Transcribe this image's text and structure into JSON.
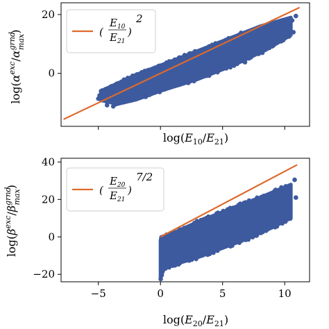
{
  "chart_data": [
    {
      "type": "scatter",
      "xlim": [
        -8,
        12
      ],
      "ylim": [
        -18,
        24
      ],
      "xticks": [
        -5,
        0,
        5,
        10
      ],
      "yticks": [
        -20,
        0,
        20
      ],
      "ytick_labels": [
        "0",
        "20"
      ],
      "xlabel": "log(E10/E21)",
      "ylabel": "log(α^exc/α^grnd_max)",
      "legend": {
        "text": "(E10/E21)^2",
        "position": "top-left"
      },
      "reference_line": {
        "x": [
          -7.8,
          11.2
        ],
        "y": [
          -15.6,
          22.4
        ],
        "color": "#dd6a2c"
      },
      "point_color": "#3e5a9e",
      "point_cloud": {
        "upper": [
          [
            -4.8,
            -6
          ],
          [
            -2,
            -0.5
          ],
          [
            2,
            6
          ],
          [
            5,
            11
          ],
          [
            8,
            16
          ],
          [
            10.5,
            19
          ]
        ],
        "lower": [
          [
            -4.8,
            -9
          ],
          [
            -3.5,
            -10.5
          ],
          [
            -2,
            -9
          ],
          [
            0,
            -6
          ],
          [
            3,
            -2
          ],
          [
            6,
            3
          ],
          [
            8.5,
            8
          ],
          [
            10.5,
            13
          ]
        ],
        "outliers": [
          [
            10.6,
            18
          ],
          [
            10.9,
            19.5
          ],
          [
            9.9,
            15.5
          ],
          [
            10.2,
            16.6
          ],
          [
            9.6,
            17
          ],
          [
            -4.9,
            -7.5
          ],
          [
            -3.8,
            -11.2
          ],
          [
            -4.3,
            -10.8
          ],
          [
            6.8,
            3.8
          ],
          [
            8.2,
            7.0
          ],
          [
            9.0,
            9.2
          ],
          [
            10.7,
            14.0
          ],
          [
            -5.0,
            -8.6
          ]
        ]
      }
    },
    {
      "type": "scatter",
      "xlim": [
        -8,
        12
      ],
      "ylim": [
        -24,
        42
      ],
      "xticks": [
        -5,
        0,
        5,
        10
      ],
      "xtick_labels": [
        "−5",
        "0",
        "5",
        "10"
      ],
      "yticks": [
        -20,
        0,
        20,
        40
      ],
      "ytick_labels": [
        "−20",
        "0",
        "20",
        "40"
      ],
      "xlabel": "log(E20/E21)",
      "ylabel": "log(β^exc/β^grnd_max)",
      "legend": {
        "text": "(E20/E21)^7/2",
        "position": "top-left"
      },
      "reference_line": {
        "x": [
          0,
          11
        ],
        "y": [
          0,
          38.5
        ],
        "color": "#dd6a2c"
      },
      "point_color": "#3e5a9e",
      "point_cloud": {
        "upper": [
          [
            0,
            -2
          ],
          [
            0.05,
            0
          ],
          [
            1,
            2
          ],
          [
            3,
            8
          ],
          [
            6,
            16
          ],
          [
            8,
            21
          ],
          [
            10.5,
            28
          ]
        ],
        "lower": [
          [
            0,
            -22
          ],
          [
            0.05,
            -21
          ],
          [
            0.3,
            -17
          ],
          [
            1.5,
            -14
          ],
          [
            3,
            -11
          ],
          [
            5,
            -6
          ],
          [
            7,
            -1
          ],
          [
            9,
            5
          ],
          [
            10.5,
            10
          ]
        ],
        "outliers": [
          [
            10.8,
            30.5
          ],
          [
            10.4,
            26
          ],
          [
            9.5,
            24.5
          ],
          [
            10.9,
            21
          ],
          [
            0.02,
            -22.5
          ],
          [
            0.1,
            -20.5
          ],
          [
            0.2,
            -10
          ],
          [
            6.5,
            1.5
          ],
          [
            8.5,
            4
          ],
          [
            10.2,
            12.5
          ],
          [
            3.8,
            -9.5
          ]
        ]
      }
    }
  ]
}
